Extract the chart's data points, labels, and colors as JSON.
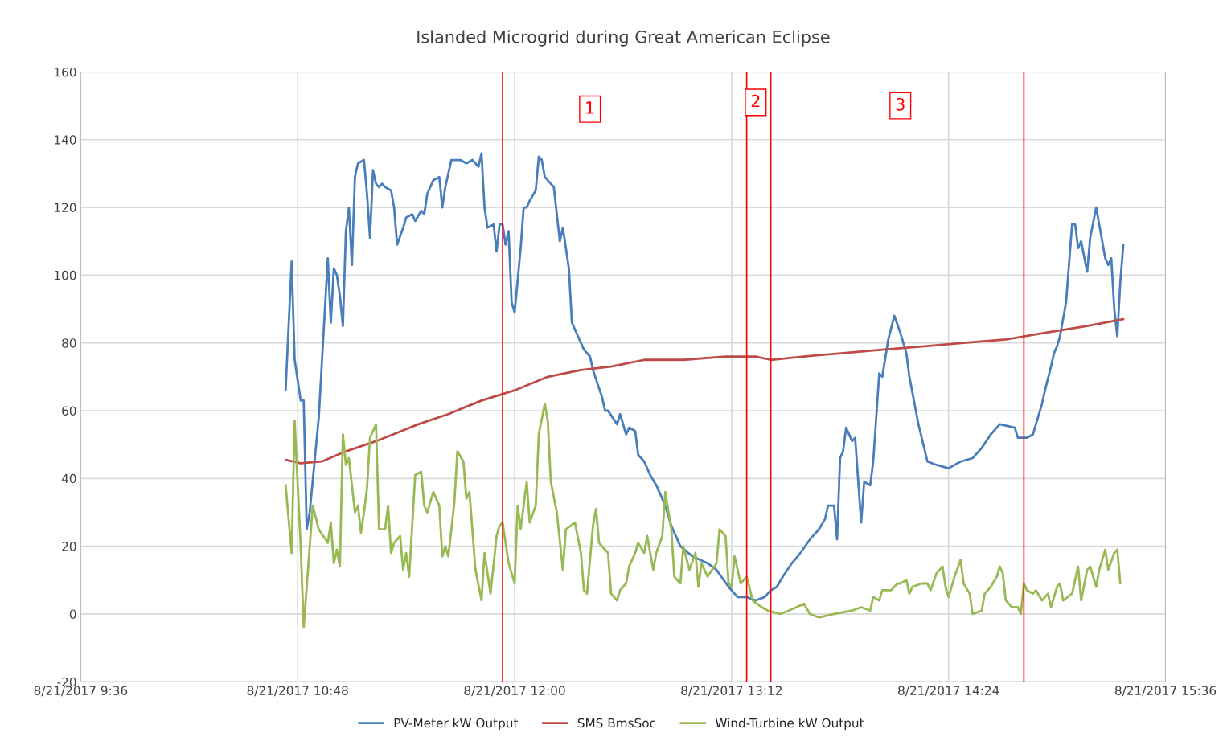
{
  "chart_data": {
    "type": "line",
    "title": "Islanded Microgrid during Great American Eclipse",
    "xlim": [
      "2017-08-21T09:36",
      "2017-08-21T15:36"
    ],
    "xticks": [
      {
        "value": "2017-08-21T09:36",
        "label": "8/21/2017 9:36"
      },
      {
        "value": "2017-08-21T10:48",
        "label": "8/21/2017 10:48"
      },
      {
        "value": "2017-08-21T12:00",
        "label": "8/21/2017 12:00"
      },
      {
        "value": "2017-08-21T13:12",
        "label": "8/21/2017 13:12"
      },
      {
        "value": "2017-08-21T14:24",
        "label": "8/21/2017 14:24"
      },
      {
        "value": "2017-08-21T15:36",
        "label": "8/21/2017 15:36"
      }
    ],
    "ylim": [
      -20,
      160
    ],
    "yticks": [
      -20,
      0,
      20,
      40,
      60,
      80,
      100,
      120,
      140,
      160
    ],
    "grid": true,
    "legend": "bottom",
    "line_style": "solid",
    "series": [
      {
        "name": "PV-Meter kW Output",
        "color": "#4a7ebb",
        "x": [
          "2017-08-21T10:44",
          "2017-08-21T10:46",
          "2017-08-21T10:47",
          "2017-08-21T10:49",
          "2017-08-21T10:50",
          "2017-08-21T10:51",
          "2017-08-21T10:52",
          "2017-08-21T10:55",
          "2017-08-21T10:58",
          "2017-08-21T10:59",
          "2017-08-21T11:00",
          "2017-08-21T11:01",
          "2017-08-21T11:02",
          "2017-08-21T11:03",
          "2017-08-21T11:04",
          "2017-08-21T11:05",
          "2017-08-21T11:06",
          "2017-08-21T11:07",
          "2017-08-21T11:08",
          "2017-08-21T11:10",
          "2017-08-21T11:11",
          "2017-08-21T11:12",
          "2017-08-21T11:13",
          "2017-08-21T11:14",
          "2017-08-21T11:15",
          "2017-08-21T11:16",
          "2017-08-21T11:17",
          "2017-08-21T11:19",
          "2017-08-21T11:20",
          "2017-08-21T11:21",
          "2017-08-21T11:23",
          "2017-08-21T11:24",
          "2017-08-21T11:26",
          "2017-08-21T11:27",
          "2017-08-21T11:29",
          "2017-08-21T11:30",
          "2017-08-21T11:31",
          "2017-08-21T11:33",
          "2017-08-21T11:35",
          "2017-08-21T11:36",
          "2017-08-21T11:37",
          "2017-08-21T11:39",
          "2017-08-21T11:40",
          "2017-08-21T11:42",
          "2017-08-21T11:44",
          "2017-08-21T11:46",
          "2017-08-21T11:47",
          "2017-08-21T11:48",
          "2017-08-21T11:49",
          "2017-08-21T11:50",
          "2017-08-21T11:51",
          "2017-08-21T11:53",
          "2017-08-21T11:54",
          "2017-08-21T11:55",
          "2017-08-21T11:56",
          "2017-08-21T11:57",
          "2017-08-21T11:58",
          "2017-08-21T11:59",
          "2017-08-21T12:00",
          "2017-08-21T12:02",
          "2017-08-21T12:03",
          "2017-08-21T12:04",
          "2017-08-21T12:05",
          "2017-08-21T12:07",
          "2017-08-21T12:08",
          "2017-08-21T12:09",
          "2017-08-21T12:10",
          "2017-08-21T12:12",
          "2017-08-21T12:13",
          "2017-08-21T12:15",
          "2017-08-21T12:16",
          "2017-08-21T12:18",
          "2017-08-21T12:19",
          "2017-08-21T12:21",
          "2017-08-21T12:23",
          "2017-08-21T12:25",
          "2017-08-21T12:26",
          "2017-08-21T12:29",
          "2017-08-21T12:30",
          "2017-08-21T12:31",
          "2017-08-21T12:34",
          "2017-08-21T12:35",
          "2017-08-21T12:36",
          "2017-08-21T12:37",
          "2017-08-21T12:38",
          "2017-08-21T12:40",
          "2017-08-21T12:41",
          "2017-08-21T12:43",
          "2017-08-21T12:45",
          "2017-08-21T12:47",
          "2017-08-21T12:48",
          "2017-08-21T12:50",
          "2017-08-21T12:52",
          "2017-08-21T12:55",
          "2017-08-21T12:59",
          "2017-08-21T13:04",
          "2017-08-21T13:07",
          "2017-08-21T13:11",
          "2017-08-21T13:14",
          "2017-08-21T13:17",
          "2017-08-21T13:20",
          "2017-08-21T13:23",
          "2017-08-21T13:25",
          "2017-08-21T13:27",
          "2017-08-21T13:29",
          "2017-08-21T13:32",
          "2017-08-21T13:34",
          "2017-08-21T13:38",
          "2017-08-21T13:41",
          "2017-08-21T13:43",
          "2017-08-21T13:44",
          "2017-08-21T13:46",
          "2017-08-21T13:47",
          "2017-08-21T13:48",
          "2017-08-21T13:49",
          "2017-08-21T13:50",
          "2017-08-21T13:52",
          "2017-08-21T13:53",
          "2017-08-21T13:55",
          "2017-08-21T13:56",
          "2017-08-21T13:58",
          "2017-08-21T13:59",
          "2017-08-21T14:01",
          "2017-08-21T14:02",
          "2017-08-21T14:04",
          "2017-08-21T14:06",
          "2017-08-21T14:08",
          "2017-08-21T14:10",
          "2017-08-21T14:11",
          "2017-08-21T14:14",
          "2017-08-21T14:17",
          "2017-08-21T14:20",
          "2017-08-21T14:24",
          "2017-08-21T14:28",
          "2017-08-21T14:32",
          "2017-08-21T14:35",
          "2017-08-21T14:38",
          "2017-08-21T14:41",
          "2017-08-21T14:46",
          "2017-08-21T14:47",
          "2017-08-21T14:50",
          "2017-08-21T14:52",
          "2017-08-21T14:55",
          "2017-08-21T14:56",
          "2017-08-21T14:58",
          "2017-08-21T14:59",
          "2017-08-21T15:00",
          "2017-08-21T15:01",
          "2017-08-21T15:03",
          "2017-08-21T15:05",
          "2017-08-21T15:06",
          "2017-08-21T15:07",
          "2017-08-21T15:08",
          "2017-08-21T15:10",
          "2017-08-21T15:11",
          "2017-08-21T15:13",
          "2017-08-21T15:14",
          "2017-08-21T15:16",
          "2017-08-21T15:17",
          "2017-08-21T15:18",
          "2017-08-21T15:19",
          "2017-08-21T15:20",
          "2017-08-21T15:21",
          "2017-08-21T15:22"
        ],
        "values": [
          66,
          104,
          75,
          63,
          63,
          25,
          30,
          58,
          105,
          86,
          102,
          100,
          94,
          85,
          113,
          120,
          103,
          129,
          133,
          134,
          124,
          111,
          131,
          127,
          126,
          127,
          126,
          125,
          120,
          109,
          114,
          117,
          118,
          116,
          119,
          118,
          124,
          128,
          129,
          120,
          126,
          134,
          134,
          134,
          133,
          134,
          133,
          132,
          136,
          120,
          114,
          115,
          107,
          115,
          115,
          109,
          113,
          92,
          89,
          108,
          120,
          120,
          122,
          125,
          135,
          134,
          129,
          127,
          126,
          110,
          114,
          102,
          86,
          82,
          78,
          76,
          72,
          64,
          60,
          60,
          56,
          59,
          56,
          53,
          55,
          54,
          47,
          45,
          41,
          38,
          36,
          32,
          26,
          20,
          17,
          15,
          13,
          8,
          5,
          5,
          4,
          5,
          7,
          8,
          11,
          15,
          17,
          22,
          25,
          28,
          32,
          32,
          22,
          46,
          48,
          55,
          51,
          52,
          27,
          39,
          38,
          45,
          71,
          70,
          81,
          88,
          83,
          77,
          70,
          56,
          45,
          44,
          43,
          45,
          46,
          49,
          53,
          56,
          55,
          52,
          52,
          53,
          62,
          66,
          73,
          77,
          79,
          82,
          92,
          115,
          115,
          108,
          110,
          101,
          111,
          120,
          115,
          105,
          103,
          105,
          90,
          82,
          98,
          109
        ]
      },
      {
        "name": "SMS BmsSoc",
        "color": "#be4b48",
        "x": [
          "2017-08-21T10:44",
          "2017-08-21T10:49",
          "2017-08-21T10:56",
          "2017-08-21T11:04",
          "2017-08-21T11:14",
          "2017-08-21T11:28",
          "2017-08-21T11:38",
          "2017-08-21T11:49",
          "2017-08-21T12:00",
          "2017-08-21T12:11",
          "2017-08-21T12:22",
          "2017-08-21T12:32",
          "2017-08-21T12:43",
          "2017-08-21T12:56",
          "2017-08-21T13:10",
          "2017-08-21T13:20",
          "2017-08-21T13:25",
          "2017-08-21T13:36",
          "2017-08-21T13:49",
          "2017-08-21T14:02",
          "2017-08-21T14:16",
          "2017-08-21T14:29",
          "2017-08-21T14:43",
          "2017-08-21T14:56",
          "2017-08-21T15:10",
          "2017-08-21T15:22"
        ],
        "values": [
          45.5,
          44.5,
          45,
          48,
          51,
          56,
          59,
          63,
          66,
          70,
          72,
          73,
          75,
          75,
          76,
          76,
          75,
          76,
          77,
          78,
          79,
          80,
          81,
          83,
          85,
          87
        ]
      },
      {
        "name": "Wind-Turbine kW Output",
        "color": "#98b954",
        "x": [
          "2017-08-21T10:44",
          "2017-08-21T10:46",
          "2017-08-21T10:47",
          "2017-08-21T10:49",
          "2017-08-21T10:50",
          "2017-08-21T10:52",
          "2017-08-21T10:53",
          "2017-08-21T10:55",
          "2017-08-21T10:58",
          "2017-08-21T10:59",
          "2017-08-21T11:00",
          "2017-08-21T11:01",
          "2017-08-21T11:02",
          "2017-08-21T11:03",
          "2017-08-21T11:04",
          "2017-08-21T11:05",
          "2017-08-21T11:07",
          "2017-08-21T11:08",
          "2017-08-21T11:09",
          "2017-08-21T11:10",
          "2017-08-21T11:11",
          "2017-08-21T11:12",
          "2017-08-21T11:14",
          "2017-08-21T11:15",
          "2017-08-21T11:17",
          "2017-08-21T11:18",
          "2017-08-21T11:19",
          "2017-08-21T11:20",
          "2017-08-21T11:22",
          "2017-08-21T11:23",
          "2017-08-21T11:24",
          "2017-08-21T11:25",
          "2017-08-21T11:27",
          "2017-08-21T11:29",
          "2017-08-21T11:30",
          "2017-08-21T11:31",
          "2017-08-21T11:33",
          "2017-08-21T11:35",
          "2017-08-21T11:36",
          "2017-08-21T11:37",
          "2017-08-21T11:38",
          "2017-08-21T11:40",
          "2017-08-21T11:41",
          "2017-08-21T11:43",
          "2017-08-21T11:44",
          "2017-08-21T11:45",
          "2017-08-21T11:47",
          "2017-08-21T11:49",
          "2017-08-21T11:50",
          "2017-08-21T11:52",
          "2017-08-21T11:54",
          "2017-08-21T11:55",
          "2017-08-21T11:56",
          "2017-08-21T11:58",
          "2017-08-21T12:00",
          "2017-08-21T12:01",
          "2017-08-21T12:02",
          "2017-08-21T12:04",
          "2017-08-21T12:05",
          "2017-08-21T12:07",
          "2017-08-21T12:08",
          "2017-08-21T12:10",
          "2017-08-21T12:11",
          "2017-08-21T12:12",
          "2017-08-21T12:14",
          "2017-08-21T12:16",
          "2017-08-21T12:17",
          "2017-08-21T12:20",
          "2017-08-21T12:22",
          "2017-08-21T12:23",
          "2017-08-21T12:24",
          "2017-08-21T12:26",
          "2017-08-21T12:27",
          "2017-08-21T12:28",
          "2017-08-21T12:31",
          "2017-08-21T12:32",
          "2017-08-21T12:34",
          "2017-08-21T12:35",
          "2017-08-21T12:37",
          "2017-08-21T12:38",
          "2017-08-21T12:40",
          "2017-08-21T12:41",
          "2017-08-21T12:43",
          "2017-08-21T12:44",
          "2017-08-21T12:46",
          "2017-08-21T12:47",
          "2017-08-21T12:49",
          "2017-08-21T12:50",
          "2017-08-21T12:52",
          "2017-08-21T12:53",
          "2017-08-21T12:55",
          "2017-08-21T12:56",
          "2017-08-21T12:58",
          "2017-08-21T13:00",
          "2017-08-21T13:01",
          "2017-08-21T13:02",
          "2017-08-21T13:04",
          "2017-08-21T13:07",
          "2017-08-21T13:08",
          "2017-08-21T13:10",
          "2017-08-21T13:11",
          "2017-08-21T13:12",
          "2017-08-21T13:13",
          "2017-08-21T13:15",
          "2017-08-21T13:17",
          "2017-08-21T13:19",
          "2017-08-21T13:22",
          "2017-08-21T13:24",
          "2017-08-21T13:28",
          "2017-08-21T13:31",
          "2017-08-21T13:36",
          "2017-08-21T13:38",
          "2017-08-21T13:41",
          "2017-08-21T13:46",
          "2017-08-21T13:52",
          "2017-08-21T13:55",
          "2017-08-21T13:58",
          "2017-08-21T13:59",
          "2017-08-21T14:01",
          "2017-08-21T14:02",
          "2017-08-21T14:05",
          "2017-08-21T14:07",
          "2017-08-21T14:08",
          "2017-08-21T14:10",
          "2017-08-21T14:11",
          "2017-08-21T14:12",
          "2017-08-21T14:15",
          "2017-08-21T14:17",
          "2017-08-21T14:18",
          "2017-08-21T14:20",
          "2017-08-21T14:22",
          "2017-08-21T14:23",
          "2017-08-21T14:24",
          "2017-08-21T14:26",
          "2017-08-21T14:28",
          "2017-08-21T14:29",
          "2017-08-21T14:31",
          "2017-08-21T14:32",
          "2017-08-21T14:35",
          "2017-08-21T14:36",
          "2017-08-21T14:38",
          "2017-08-21T14:40",
          "2017-08-21T14:41",
          "2017-08-21T14:42",
          "2017-08-21T14:43",
          "2017-08-21T14:45",
          "2017-08-21T14:47",
          "2017-08-21T14:48",
          "2017-08-21T14:49",
          "2017-08-21T14:50",
          "2017-08-21T14:52",
          "2017-08-21T14:53",
          "2017-08-21T14:55",
          "2017-08-21T14:57",
          "2017-08-21T14:58",
          "2017-08-21T15:00",
          "2017-08-21T15:01",
          "2017-08-21T15:02",
          "2017-08-21T15:05",
          "2017-08-21T15:07",
          "2017-08-21T15:08",
          "2017-08-21T15:10",
          "2017-08-21T15:11",
          "2017-08-21T15:13",
          "2017-08-21T15:14",
          "2017-08-21T15:16",
          "2017-08-21T15:17",
          "2017-08-21T15:19",
          "2017-08-21T15:20",
          "2017-08-21T15:21"
        ],
        "values": [
          38,
          18,
          57,
          20,
          -4,
          20,
          32,
          25,
          21,
          27,
          15,
          19,
          14,
          53,
          44,
          46,
          30,
          32,
          24,
          30,
          37,
          52,
          56,
          25,
          25,
          32,
          18,
          21,
          23,
          13,
          18,
          11,
          41,
          42,
          32,
          30,
          36,
          32,
          17,
          20,
          17,
          33,
          48,
          45,
          34,
          36,
          13,
          4,
          18,
          6,
          23,
          26,
          27,
          15,
          9,
          32,
          25,
          39,
          27,
          32,
          53,
          62,
          57,
          39,
          30,
          13,
          25,
          27,
          18,
          7,
          6,
          26,
          31,
          21,
          18,
          6,
          4,
          7,
          9,
          14,
          18,
          21,
          18,
          23,
          13,
          18,
          23,
          36,
          25,
          11,
          9,
          20,
          13,
          18,
          8,
          15,
          11,
          15,
          25,
          23,
          9,
          8,
          17,
          9,
          11,
          4,
          2,
          1,
          0,
          1,
          3,
          0,
          -1,
          0,
          1,
          2,
          1,
          5,
          4,
          7,
          7,
          9,
          9,
          10,
          6,
          8,
          9,
          9,
          7,
          12,
          14,
          8,
          5,
          11,
          16,
          9,
          6,
          0,
          1,
          6,
          8,
          11,
          14,
          12,
          4,
          2,
          2,
          0,
          9,
          7,
          6,
          7,
          4,
          6,
          2,
          8,
          9,
          4,
          6,
          14,
          4,
          13,
          14,
          8,
          13,
          19,
          13,
          18,
          19,
          9
        ]
      }
    ],
    "ref_lines": [
      {
        "axis": "x",
        "value": "2017-08-21T11:56",
        "color": "#ff0000"
      },
      {
        "axis": "x",
        "value": "2017-08-21T13:17",
        "color": "#ff0000"
      },
      {
        "axis": "x",
        "value": "2017-08-21T13:25",
        "color": "#ff0000"
      },
      {
        "axis": "x",
        "value": "2017-08-21T14:49",
        "color": "#ff0000"
      }
    ],
    "annotations": [
      {
        "text": "1",
        "x": "2017-08-21T12:25",
        "y": 149
      },
      {
        "text": "2",
        "x": "2017-08-21T13:20",
        "y": 151
      },
      {
        "text": "3",
        "x": "2017-08-21T14:08",
        "y": 150
      }
    ]
  }
}
